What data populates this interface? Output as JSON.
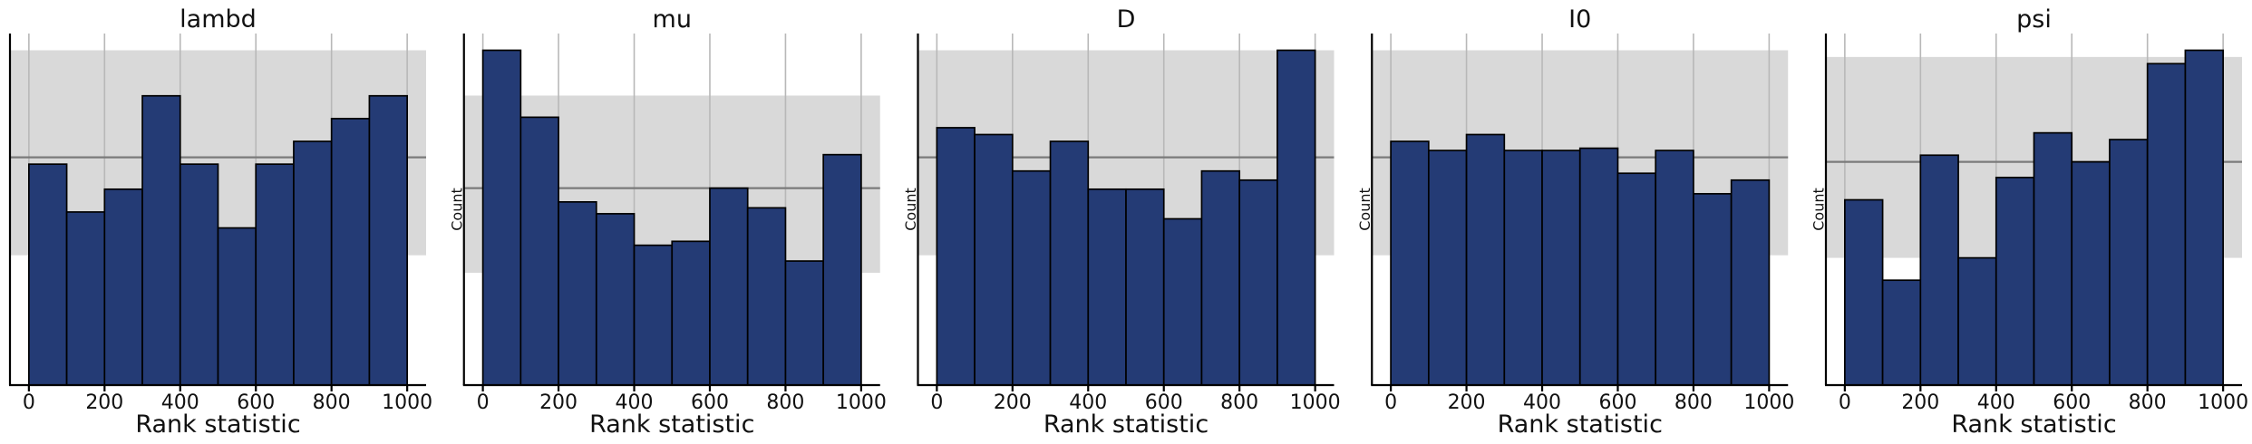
{
  "figure": {
    "kind": "sbc-rank-statistic-histograms",
    "xlabel": "Rank statistic",
    "ylabel": "Count",
    "panel_titles": [
      "lambd",
      "mu",
      "D",
      "I0",
      "psi"
    ]
  },
  "style": {
    "bar_fill": "#243b75",
    "bar_edge": "#000000",
    "band_color": "#d9d9d9",
    "grid_color": "#b8b8b8",
    "expected_line_color": "#7a7a7a",
    "axis_color": "#000000",
    "text_color": "#111111",
    "background": "#ffffff"
  },
  "chart_data": [
    {
      "type": "bar",
      "subtype": "histogram",
      "title": "lambd",
      "xlabel": "Rank statistic",
      "ylabel": "",
      "bin_edges": [
        0,
        100,
        200,
        300,
        400,
        500,
        600,
        700,
        800,
        900,
        1000
      ],
      "counts": [
        97,
        76,
        86,
        127,
        97,
        69,
        97,
        107,
        117,
        127
      ],
      "expected_count": 100,
      "confidence_band": [
        57,
        147
      ],
      "x_ticks": [
        0,
        200,
        400,
        600,
        800,
        1000
      ],
      "xlim": [
        -50,
        1050
      ],
      "grid": true,
      "legend": false
    },
    {
      "type": "bar",
      "subtype": "histogram",
      "title": "mu",
      "xlabel": "Rank statistic",
      "ylabel": "Count",
      "bin_edges": [
        0,
        100,
        200,
        300,
        400,
        500,
        600,
        700,
        800,
        900,
        1000
      ],
      "counts": [
        170,
        136,
        93,
        87,
        71,
        73,
        100,
        90,
        63,
        117
      ],
      "expected_count": 100,
      "confidence_band": [
        57,
        147
      ],
      "x_ticks": [
        0,
        200,
        400,
        600,
        800,
        1000
      ],
      "xlim": [
        -50,
        1050
      ],
      "grid": true,
      "legend": false
    },
    {
      "type": "bar",
      "subtype": "histogram",
      "title": "D",
      "xlabel": "Rank statistic",
      "ylabel": "Count",
      "bin_edges": [
        0,
        100,
        200,
        300,
        400,
        500,
        600,
        700,
        800,
        900,
        1000
      ],
      "counts": [
        113,
        110,
        94,
        107,
        86,
        86,
        73,
        94,
        90,
        147
      ],
      "expected_count": 100,
      "confidence_band": [
        57,
        147
      ],
      "x_ticks": [
        0,
        200,
        400,
        600,
        800,
        1000
      ],
      "xlim": [
        -50,
        1050
      ],
      "grid": true,
      "legend": false
    },
    {
      "type": "bar",
      "subtype": "histogram",
      "title": "I0",
      "xlabel": "Rank statistic",
      "ylabel": "Count",
      "bin_edges": [
        0,
        100,
        200,
        300,
        400,
        500,
        600,
        700,
        800,
        900,
        1000
      ],
      "counts": [
        107,
        103,
        110,
        103,
        103,
        104,
        93,
        103,
        84,
        90
      ],
      "expected_count": 100,
      "confidence_band": [
        57,
        147
      ],
      "x_ticks": [
        0,
        200,
        400,
        600,
        800,
        1000
      ],
      "xlim": [
        -50,
        1050
      ],
      "grid": true,
      "legend": false
    },
    {
      "type": "bar",
      "subtype": "histogram",
      "title": "psi",
      "xlabel": "Rank statistic",
      "ylabel": "Count",
      "bin_edges": [
        0,
        100,
        200,
        300,
        400,
        500,
        600,
        700,
        800,
        900,
        1000
      ],
      "counts": [
        83,
        47,
        103,
        57,
        93,
        113,
        100,
        110,
        144,
        150
      ],
      "expected_count": 100,
      "confidence_band": [
        57,
        147
      ],
      "x_ticks": [
        0,
        200,
        400,
        600,
        800,
        1000
      ],
      "xlim": [
        -50,
        1050
      ],
      "grid": true,
      "legend": false
    }
  ]
}
